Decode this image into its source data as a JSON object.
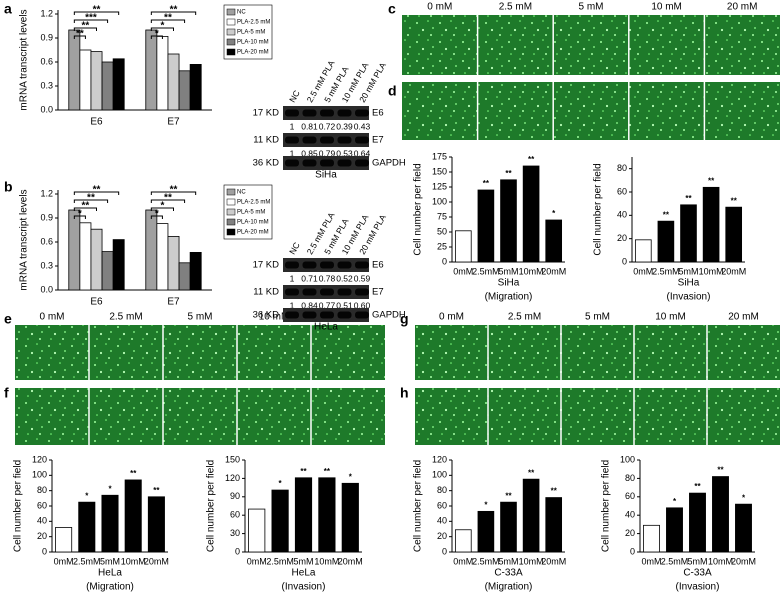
{
  "panel_labels": [
    "a",
    "b",
    "c",
    "d",
    "e",
    "f",
    "g",
    "h"
  ],
  "micrographs": {
    "column_labels": [
      "0 mM",
      "2.5 mM",
      "5 mM",
      "10 mM",
      "20 mM"
    ]
  },
  "blots": [
    {
      "lanes": [
        "NC",
        "2.5 mM PLA",
        "5 mM PLA",
        "10 mM PLA",
        "20 mM PLA"
      ],
      "rows": [
        {
          "size": "17 KD",
          "name": "E6",
          "values": [
            "1",
            "0.81",
            "0.72",
            "0.39",
            "0.43"
          ]
        },
        {
          "size": "11 KD",
          "name": "E7",
          "values": [
            "1",
            "0.85",
            "0.79",
            "0.53",
            "0.64"
          ]
        },
        {
          "size": "36 KD",
          "name": "GAPDH"
        }
      ],
      "cell_line": "SiHa"
    },
    {
      "lanes": [
        "NC",
        "2.5 mM PLA",
        "5 mM PLA",
        "10 mM PLA",
        "20 mM PLA"
      ],
      "rows": [
        {
          "size": "17 KD",
          "name": "E6",
          "values": [
            "1",
            "0.71",
            "0.78",
            "0.52",
            "0.59"
          ]
        },
        {
          "size": "11 KD",
          "name": "E7",
          "values": [
            "1",
            "0.84",
            "0.77",
            "0.51",
            "0.60"
          ]
        },
        {
          "size": "36 KD",
          "name": "GAPDH"
        }
      ],
      "cell_line": "HeLa"
    }
  ],
  "chart_data": [
    {
      "type": "grouped_bar",
      "y_label": "mRNA transcript levels",
      "categories": [
        "E6",
        "E7"
      ],
      "series": [
        {
          "name": "NC",
          "color": "#a0a0a0",
          "values": [
            1.0,
            1.0
          ]
        },
        {
          "name": "PLA-2.5 mM",
          "color": "#ffffff",
          "values": [
            0.75,
            0.92
          ]
        },
        {
          "name": "PLA-5 mM",
          "color": "#cccccc",
          "values": [
            0.73,
            0.7
          ]
        },
        {
          "name": "PLA-10 mM",
          "color": "#808080",
          "values": [
            0.6,
            0.49
          ]
        },
        {
          "name": "PLA-20 mM",
          "color": "#000000",
          "values": [
            0.64,
            0.57
          ]
        }
      ],
      "significance": [
        [
          "**",
          "**",
          "***",
          "**"
        ],
        [
          "*",
          "*",
          "**",
          "**"
        ]
      ],
      "ylim": [
        0,
        1.25
      ],
      "yticks": [
        {
          "value": 0,
          "label": "0.0"
        },
        0.3,
        0.6,
        0.9,
        1.2
      ]
    },
    {
      "type": "grouped_bar",
      "y_label": "mRNA transcript levels",
      "categories": [
        "E6",
        "E7"
      ],
      "series": [
        {
          "name": "NC",
          "color": "#a0a0a0",
          "values": [
            1.0,
            1.0
          ]
        },
        {
          "name": "PLA-2.5 mM",
          "color": "#ffffff",
          "values": [
            0.84,
            0.83
          ]
        },
        {
          "name": "PLA-5 mM",
          "color": "#cccccc",
          "values": [
            0.76,
            0.67
          ]
        },
        {
          "name": "PLA-10 mM",
          "color": "#808080",
          "values": [
            0.48,
            0.34
          ]
        },
        {
          "name": "PLA-20 mM",
          "color": "#000000",
          "values": [
            0.63,
            0.47
          ]
        }
      ],
      "significance": [
        [
          "*",
          "**",
          "**",
          "**"
        ],
        [
          "*",
          "*",
          "**",
          "**"
        ]
      ],
      "ylim": [
        0,
        1.25
      ],
      "yticks": [
        {
          "value": 0,
          "label": "0.0"
        },
        0.3,
        0.6,
        0.9,
        1.2
      ]
    },
    {
      "type": "bar",
      "y_label": "Cell number per field",
      "x_label": "SiHa",
      "caption": "(Migration)",
      "categories": [
        "0mM",
        "2.5mM",
        "5mM",
        "10mM",
        "20mM"
      ],
      "values": [
        52,
        120,
        137,
        160,
        70
      ],
      "colors": [
        "#ffffff",
        "#000000",
        "#000000",
        "#000000",
        "#000000"
      ],
      "annotations": [
        null,
        "**",
        "**",
        "**",
        "*"
      ],
      "ylim": [
        0,
        175
      ],
      "yticks": [
        0,
        25,
        50,
        75,
        100,
        125,
        150,
        175
      ]
    },
    {
      "type": "bar",
      "y_label": "Cell number per field",
      "x_label": "SiHa",
      "caption": "(Invasion)",
      "categories": [
        "0mM",
        "2.5mM",
        "5mM",
        "10mM",
        "20mM"
      ],
      "values": [
        19,
        35,
        49,
        64,
        47
      ],
      "colors": [
        "#ffffff",
        "#000000",
        "#000000",
        "#000000",
        "#000000"
      ],
      "annotations": [
        null,
        "**",
        "**",
        "**",
        "**"
      ],
      "ylim": [
        0,
        90
      ],
      "yticks": [
        0,
        20,
        40,
        60,
        80
      ]
    },
    {
      "type": "bar",
      "y_label": "Cell number per field",
      "x_label": "HeLa",
      "caption": "(Migration)",
      "categories": [
        "0mM",
        "2.5mM",
        "5mM",
        "10mM",
        "20mM"
      ],
      "values": [
        32,
        65,
        74,
        94,
        72
      ],
      "colors": [
        "#ffffff",
        "#000000",
        "#000000",
        "#000000",
        "#000000"
      ],
      "annotations": [
        null,
        "*",
        "*",
        "**",
        "**"
      ],
      "ylim": [
        0,
        120
      ],
      "yticks": [
        0,
        20,
        40,
        60,
        80,
        100,
        120
      ]
    },
    {
      "type": "bar",
      "y_label": "Cell number per field",
      "x_label": "HeLa",
      "caption": "(Invasion)",
      "categories": [
        "0mM",
        "2.5mM",
        "5mM",
        "10mM",
        "20mM"
      ],
      "values": [
        70,
        101,
        121,
        121,
        112
      ],
      "colors": [
        "#ffffff",
        "#000000",
        "#000000",
        "#000000",
        "#000000"
      ],
      "annotations": [
        null,
        "*",
        "**",
        "**",
        "*"
      ],
      "ylim": [
        0,
        150
      ],
      "yticks": [
        0,
        30,
        60,
        90,
        120,
        150
      ]
    },
    {
      "type": "bar",
      "y_label": "Cell number per field",
      "x_label": "C-33A",
      "caption": "(Migration)",
      "categories": [
        "0mM",
        "2.5mM",
        "5mM",
        "10mM",
        "20mM"
      ],
      "values": [
        29,
        53,
        65,
        95,
        71
      ],
      "colors": [
        "#ffffff",
        "#000000",
        "#000000",
        "#000000",
        "#000000"
      ],
      "annotations": [
        null,
        "*",
        "**",
        "**",
        "**"
      ],
      "ylim": [
        0,
        120
      ],
      "yticks": [
        0,
        20,
        40,
        60,
        80,
        100,
        120
      ]
    },
    {
      "type": "bar",
      "y_label": "Cell number per field",
      "x_label": "C-33A",
      "caption": "(Invasion)",
      "categories": [
        "0mM",
        "2.5mM",
        "5mM",
        "10mM",
        "20mM"
      ],
      "values": [
        29,
        48,
        64,
        82,
        52
      ],
      "colors": [
        "#ffffff",
        "#000000",
        "#000000",
        "#000000",
        "#000000"
      ],
      "annotations": [
        null,
        "*",
        "**",
        "**",
        "*"
      ],
      "ylim": [
        0,
        100
      ],
      "yticks": [
        0,
        20,
        40,
        60,
        80,
        100
      ]
    }
  ]
}
